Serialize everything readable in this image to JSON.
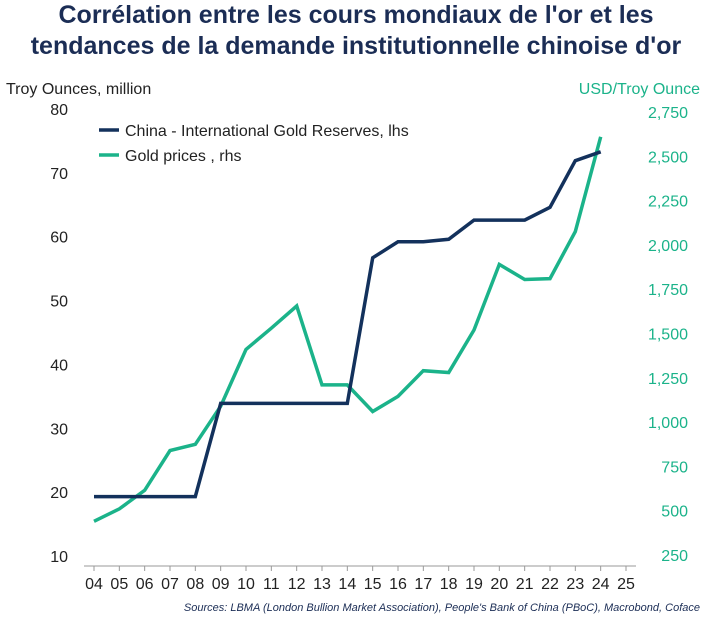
{
  "chart_data": {
    "type": "line",
    "title_lines": [
      "Corrélation entre les cours mondiaux de l'or et les",
      "tendances de la demande institutionnelle chinoise d'or"
    ],
    "ylabel_left": "Troy Ounces, million",
    "ylabel_right": "USD/Troy Ounce",
    "source": "Sources: LBMA (London Bullion Market Association), People's Bank of China (PBoC), Macrobond, Coface",
    "x_ticks": [
      "04",
      "05",
      "06",
      "07",
      "08",
      "09",
      "10",
      "11",
      "12",
      "13",
      "14",
      "15",
      "16",
      "17",
      "18",
      "19",
      "20",
      "21",
      "22",
      "23",
      "24",
      "25"
    ],
    "y_left": {
      "min": 10,
      "max": 80,
      "ticks": [
        "80",
        "70",
        "60",
        "50",
        "40",
        "30",
        "20",
        "10"
      ]
    },
    "y_right": {
      "min": 250,
      "max": 2750,
      "ticks": [
        "2,750",
        "2,500",
        "2,250",
        "2,000",
        "1,750",
        "1,500",
        "1,250",
        "1,000",
        "750",
        "500",
        "250"
      ]
    },
    "colors": {
      "china": "#13315c",
      "gold": "#1bb38a",
      "title": "#1b2d55",
      "right_axis": "#1bb38a"
    },
    "series": [
      {
        "name": "China - International Gold Reserves, lhs",
        "axis": "left",
        "color": "#13315c",
        "points": [
          [
            2004,
            19.3
          ],
          [
            2005,
            19.3
          ],
          [
            2006,
            19.3
          ],
          [
            2007,
            19.3
          ],
          [
            2008,
            19.3
          ],
          [
            2009,
            33.9
          ],
          [
            2010,
            33.9
          ],
          [
            2011,
            33.9
          ],
          [
            2012,
            33.9
          ],
          [
            2013,
            33.9
          ],
          [
            2014,
            33.9
          ],
          [
            2015,
            56.7
          ],
          [
            2016,
            59.2
          ],
          [
            2017,
            59.2
          ],
          [
            2018,
            59.6
          ],
          [
            2019,
            62.6
          ],
          [
            2020,
            62.6
          ],
          [
            2021,
            62.6
          ],
          [
            2022,
            64.6
          ],
          [
            2023,
            71.9
          ],
          [
            2024,
            73.3
          ]
        ]
      },
      {
        "name": "Gold prices , rhs",
        "axis": "right",
        "color": "#1bb38a",
        "points": [
          [
            2004,
            440
          ],
          [
            2005,
            510
          ],
          [
            2006,
            615
          ],
          [
            2007,
            840
          ],
          [
            2008,
            875
          ],
          [
            2009,
            1090
          ],
          [
            2010,
            1410
          ],
          [
            2011,
            1530
          ],
          [
            2012,
            1655
          ],
          [
            2013,
            1210
          ],
          [
            2014,
            1210
          ],
          [
            2015,
            1060
          ],
          [
            2016,
            1145
          ],
          [
            2017,
            1290
          ],
          [
            2018,
            1280
          ],
          [
            2019,
            1520
          ],
          [
            2020,
            1890
          ],
          [
            2021,
            1805
          ],
          [
            2022,
            1810
          ],
          [
            2023,
            2075
          ],
          [
            2024,
            2610
          ]
        ]
      }
    ]
  }
}
